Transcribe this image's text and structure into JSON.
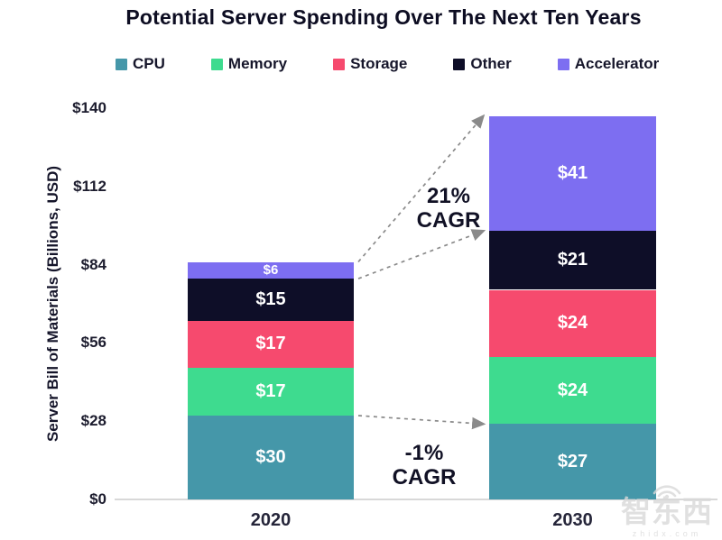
{
  "title": "Potential Server Spending Over The Next Ten Years",
  "chart_data": {
    "type": "bar",
    "stacked": true,
    "title": "Potential Server Spending Over The Next Ten Years",
    "categories": [
      "2020",
      "2030"
    ],
    "series": [
      {
        "name": "CPU",
        "color": "#4597a9",
        "values": [
          30,
          27
        ]
      },
      {
        "name": "Memory",
        "color": "#3edb8f",
        "values": [
          17,
          24
        ]
      },
      {
        "name": "Storage",
        "color": "#f64a6e",
        "values": [
          17,
          24
        ]
      },
      {
        "name": "Other",
        "color": "#0e0e28",
        "values": [
          15,
          21
        ]
      },
      {
        "name": "Accelerator",
        "color": "#7d6ef1",
        "values": [
          6,
          41
        ]
      }
    ],
    "totals": [
      85,
      137
    ],
    "xlabel": "",
    "ylabel": "Server Bill of Materials (Billions, USD)",
    "ylim": [
      0,
      140
    ],
    "yticks": [
      0,
      28,
      56,
      84,
      112,
      140
    ],
    "ytick_prefix": "$",
    "value_label_prefix": "$",
    "grid": false,
    "legend_position": "top",
    "annotations": [
      {
        "line1": "21%",
        "line2": "CAGR",
        "arrows": [
          {
            "from_value": 85,
            "to_value": 137
          },
          {
            "from_value": 79,
            "to_value": 96
          }
        ]
      },
      {
        "line1": "-1%",
        "line2": "CAGR",
        "arrows": [
          {
            "from_value": 30,
            "to_value": 27
          }
        ]
      }
    ]
  },
  "watermark": {
    "logo_text": "智东西",
    "domain": "zhidx.com"
  }
}
